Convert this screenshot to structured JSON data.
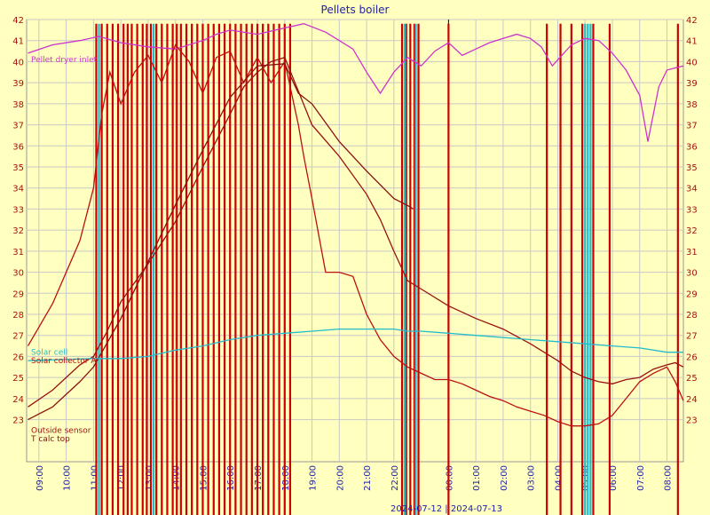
{
  "chart_data": {
    "type": "line",
    "title": "Pellets boiler",
    "ylim": [
      21,
      42
    ],
    "yticks": [
      23,
      24,
      25,
      26,
      27,
      28,
      29,
      30,
      31,
      32,
      33,
      34,
      35,
      36,
      37,
      38,
      39,
      40,
      41,
      42
    ],
    "x_start_hour": 8.55,
    "x_end_hour": 32.6,
    "xticks": [
      {
        "hour": 9,
        "label": "09:00"
      },
      {
        "hour": 10,
        "label": "10:00"
      },
      {
        "hour": 11,
        "label": "11:00"
      },
      {
        "hour": 12,
        "label": "12:00"
      },
      {
        "hour": 13,
        "label": "13:00"
      },
      {
        "hour": 14,
        "label": "14:00"
      },
      {
        "hour": 15,
        "label": "15:00"
      },
      {
        "hour": 16,
        "label": "16:00"
      },
      {
        "hour": 17,
        "label": "17:00"
      },
      {
        "hour": 18,
        "label": "18:00"
      },
      {
        "hour": 19,
        "label": "19:00"
      },
      {
        "hour": 20,
        "label": "20:00"
      },
      {
        "hour": 21,
        "label": "21:00"
      },
      {
        "hour": 22,
        "label": "22:00"
      },
      {
        "hour": 24,
        "label": "00:00"
      },
      {
        "hour": 25,
        "label": "01:00"
      },
      {
        "hour": 26,
        "label": "02:00"
      },
      {
        "hour": 27,
        "label": "03:00"
      },
      {
        "hour": 28,
        "label": "04:00"
      },
      {
        "hour": 29,
        "label": "05:00"
      },
      {
        "hour": 30,
        "label": "06:00"
      },
      {
        "hour": 31,
        "label": "07:00"
      },
      {
        "hour": 32,
        "label": "08:00"
      }
    ],
    "day_divider_hour": 24,
    "date_label": "2024-07-12 | 2024-07-13",
    "series": [
      {
        "name": "Pellet dryer inlet",
        "color": "#cc33cc",
        "x": [
          8.6,
          9.5,
          10.5,
          11.2,
          12.0,
          13.0,
          14.0,
          15.0,
          15.5,
          16.0,
          17.0,
          18.0,
          18.7,
          19.5,
          20.5,
          21.0,
          21.5,
          22.0,
          22.5,
          23.0,
          23.5,
          24.0,
          24.5,
          25.0,
          25.5,
          26.0,
          26.5,
          27.0,
          27.4,
          27.8,
          28.5,
          29.0,
          29.5,
          30.0,
          30.5,
          31.0,
          31.3,
          31.7,
          32.0,
          32.6
        ],
        "y": [
          40.4,
          40.8,
          41.0,
          41.2,
          40.9,
          40.7,
          40.6,
          41.0,
          41.3,
          41.5,
          41.3,
          41.6,
          41.8,
          41.4,
          40.6,
          39.5,
          38.5,
          39.5,
          40.2,
          39.8,
          40.5,
          40.9,
          40.3,
          40.6,
          40.9,
          41.1,
          41.3,
          41.1,
          40.7,
          39.8,
          40.8,
          41.1,
          41.0,
          40.4,
          39.6,
          38.4,
          36.2,
          38.8,
          39.6,
          39.8
        ]
      },
      {
        "name": "Solar collector A",
        "color": "#bb1111",
        "x": [
          8.6,
          9.5,
          10.5,
          11.0,
          11.3,
          11.6,
          12.0,
          12.5,
          13.0,
          13.5,
          14.0,
          14.5,
          15.0,
          15.5,
          16.0,
          16.5,
          17.0,
          17.5,
          18.0,
          18.5,
          18.7,
          19.0,
          19.5,
          20.0,
          20.5,
          21.0,
          21.5,
          22.0,
          22.5,
          23.0,
          23.5,
          24.0,
          24.5,
          25.0,
          25.5,
          26.0,
          26.5,
          27.0,
          27.5,
          28.0,
          28.5,
          29.0,
          29.5,
          30.0,
          30.5,
          31.0,
          31.5,
          32.0,
          32.3,
          32.6
        ],
        "y": [
          26.5,
          28.5,
          31.5,
          34.0,
          37.5,
          39.5,
          38.0,
          39.5,
          40.3,
          39.0,
          40.8,
          40.0,
          38.5,
          40.2,
          40.5,
          39.0,
          40.2,
          39.0,
          40.0,
          37.0,
          35.5,
          33.5,
          30.0,
          30.0,
          29.8,
          28.0,
          26.8,
          26.0,
          25.5,
          25.2,
          24.9,
          24.9,
          24.7,
          24.4,
          24.1,
          23.9,
          23.6,
          23.4,
          23.2,
          22.9,
          22.7,
          22.7,
          22.8,
          23.2,
          24.0,
          24.8,
          25.2,
          25.5,
          24.8,
          23.9
        ]
      },
      {
        "name": "Outside sensor",
        "color": "#991111",
        "x": [
          8.6,
          9.5,
          10.5,
          11.0,
          11.5,
          12.0,
          13.0,
          14.0,
          15.0,
          16.0,
          16.5,
          17.0,
          17.5,
          18.0,
          18.5,
          19.0,
          20.0,
          21.0,
          21.5,
          22.0,
          22.5,
          23.0,
          24.0,
          25.0,
          26.0,
          27.0,
          28.0,
          28.5,
          29.0,
          29.5,
          30.0,
          30.5,
          31.0,
          31.5,
          32.0,
          32.3,
          32.6
        ],
        "y": [
          23.6,
          24.4,
          25.6,
          26.0,
          27.2,
          28.6,
          30.4,
          32.4,
          35.0,
          37.5,
          38.8,
          39.5,
          40.0,
          40.2,
          38.6,
          37.0,
          35.5,
          33.7,
          32.5,
          31.0,
          29.6,
          29.2,
          28.4,
          27.8,
          27.3,
          26.6,
          25.8,
          25.3,
          25.0,
          24.8,
          24.7,
          24.9,
          25.0,
          25.4,
          25.6,
          25.7,
          25.5
        ]
      },
      {
        "name": "T calc top",
        "color": "#881111",
        "x": [
          8.6,
          9.5,
          10.5,
          11.0,
          12.0,
          13.0,
          14.0,
          15.0,
          16.0,
          17.0,
          18.0,
          18.5,
          19.0,
          20.0,
          21.0,
          22.0,
          22.6,
          22.7
        ],
        "y": [
          23.0,
          23.6,
          24.8,
          25.5,
          27.8,
          30.5,
          33.2,
          35.8,
          38.3,
          39.8,
          39.9,
          38.5,
          38.0,
          36.2,
          34.8,
          33.5,
          33.1,
          33.0
        ]
      },
      {
        "name": "Solar cell",
        "color": "#22bbcc",
        "x": [
          8.6,
          11.0,
          12.0,
          13.0,
          14.0,
          15.0,
          16.0,
          17.0,
          18.0,
          19.0,
          20.0,
          21.0,
          22.0,
          22.5,
          23.0,
          24.0,
          25.0,
          26.0,
          27.0,
          28.0,
          29.0,
          30.0,
          31.0,
          32.0,
          32.6
        ],
        "y": [
          25.8,
          25.9,
          25.9,
          26.0,
          26.3,
          26.5,
          26.8,
          27.0,
          27.1,
          27.2,
          27.3,
          27.3,
          27.3,
          27.2,
          27.2,
          27.1,
          27.0,
          26.9,
          26.8,
          26.7,
          26.6,
          26.5,
          26.4,
          26.2,
          26.2
        ]
      }
    ],
    "spikes": [
      {
        "color": "#cc0000",
        "hours": [
          11.1,
          11.3,
          11.5,
          11.7,
          11.9,
          12.1,
          12.25,
          12.4,
          12.6,
          12.8,
          12.95,
          13.1,
          13.3,
          13.5,
          13.7,
          13.9,
          14.05,
          14.2,
          14.4,
          14.6,
          14.8,
          15.0,
          15.2,
          15.4,
          15.6,
          15.8,
          16.0,
          16.2,
          16.4,
          16.6,
          16.8,
          17.0,
          17.2,
          17.4,
          17.6,
          17.8,
          18.0,
          18.2,
          22.3,
          22.45,
          22.6,
          22.75,
          22.9,
          24.0,
          27.6,
          28.1,
          28.5,
          28.9,
          29.3,
          29.9,
          32.4
        ]
      },
      {
        "color": "#22bbcc",
        "hours": [
          11.2,
          13.2,
          22.4,
          22.8,
          29.0,
          29.1,
          29.2
        ]
      }
    ]
  }
}
